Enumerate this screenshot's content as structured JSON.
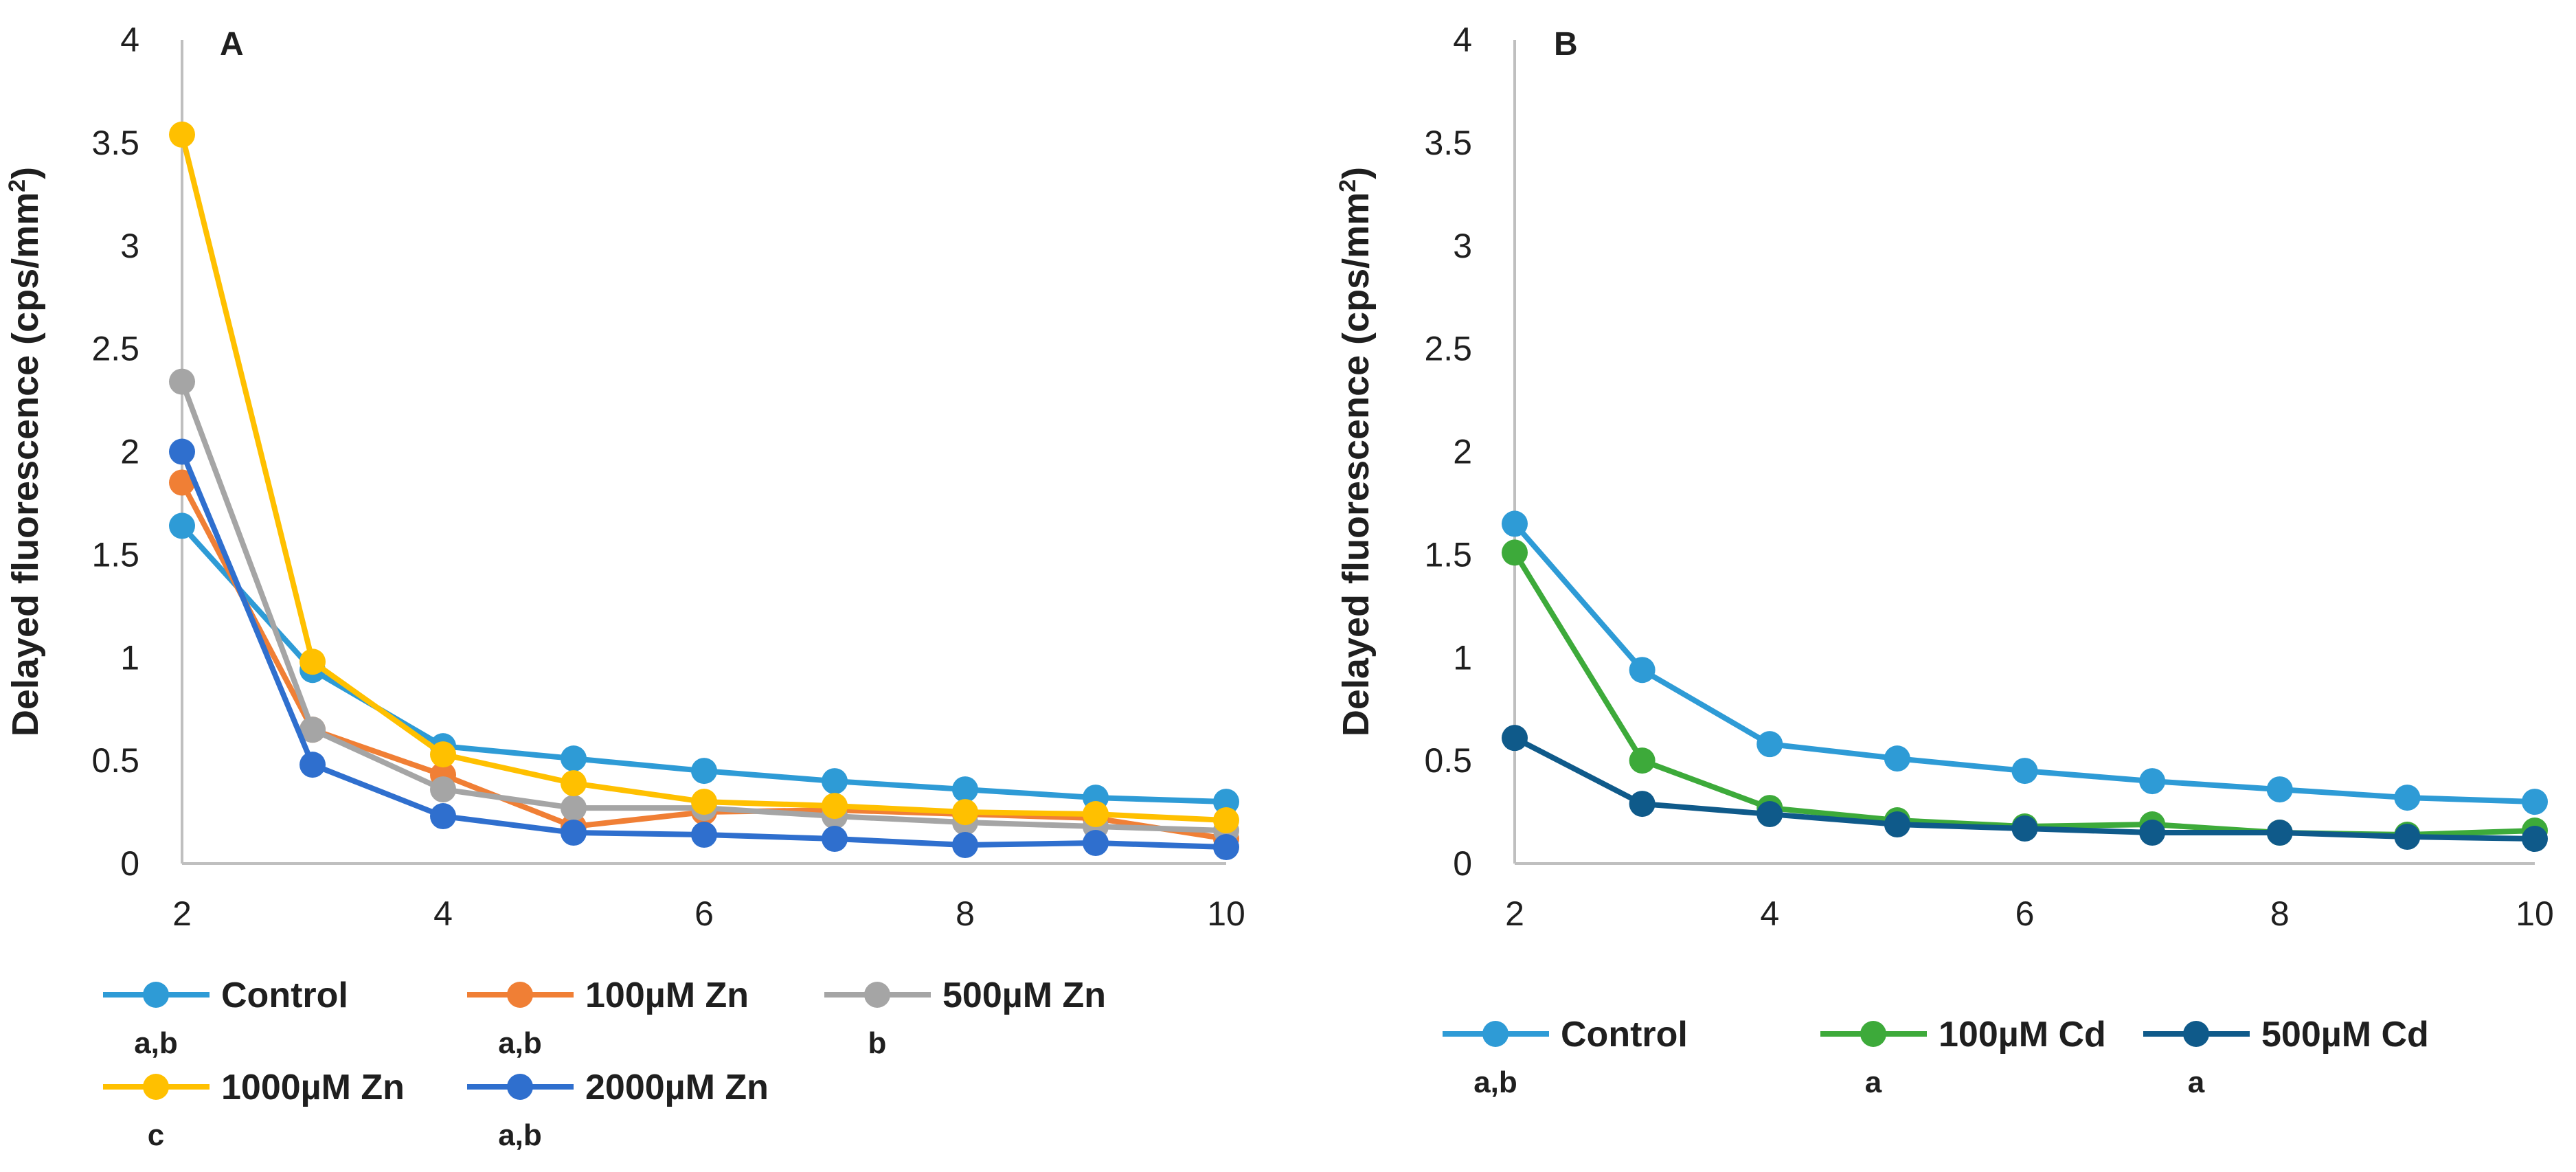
{
  "chart_data": [
    {
      "type": "line",
      "panel_label": "A",
      "ylabel_main": "Delayed fluorescence (cps/mm",
      "ylabel_sup": "2",
      "ylabel_close": ")",
      "xlabel": "",
      "xlim": [
        2,
        10
      ],
      "ylim": [
        0,
        4
      ],
      "x_ticks": [
        "2",
        "4",
        "6",
        "8",
        "10"
      ],
      "y_ticks": [
        "0",
        "0.5",
        "1",
        "1.5",
        "2",
        "2.5",
        "3",
        "3.5",
        "4"
      ],
      "grid": false,
      "legend_position": "bottom",
      "x": [
        2,
        3,
        4,
        5,
        6,
        7,
        8,
        9,
        10
      ],
      "series": [
        {
          "name": "Control",
          "significance": "a,b",
          "color": "#2E9BD6",
          "values": [
            1.64,
            0.94,
            0.57,
            0.51,
            0.45,
            0.4,
            0.36,
            0.32,
            0.3
          ]
        },
        {
          "name": "100µM  Zn",
          "significance": "a,b",
          "color": "#F07F35",
          "values": [
            1.85,
            0.65,
            0.43,
            0.18,
            0.25,
            0.26,
            0.24,
            0.22,
            0.12
          ]
        },
        {
          "name": "500µM Zn",
          "significance": "b",
          "color": "#A5A5A5",
          "values": [
            2.34,
            0.65,
            0.36,
            0.27,
            0.27,
            0.23,
            0.2,
            0.18,
            0.16
          ]
        },
        {
          "name": "1000µM Zn",
          "significance": "c",
          "color": "#FFC000",
          "values": [
            3.54,
            0.98,
            0.53,
            0.39,
            0.3,
            0.28,
            0.25,
            0.24,
            0.21
          ]
        },
        {
          "name": "2000µM Zn",
          "significance": "a,b",
          "color": "#2F6FCE",
          "values": [
            2.0,
            0.48,
            0.23,
            0.15,
            0.14,
            0.12,
            0.09,
            0.1,
            0.08
          ]
        }
      ]
    },
    {
      "type": "line",
      "panel_label": "B",
      "ylabel_main": "Delayed fluorescence (cps/mm",
      "ylabel_sup": "2",
      "ylabel_close": ")",
      "xlabel": "",
      "xlim": [
        2,
        10
      ],
      "ylim": [
        0,
        4
      ],
      "x_ticks": [
        "2",
        "4",
        "6",
        "8",
        "10"
      ],
      "y_ticks": [
        "0",
        "0.5",
        "1",
        "1.5",
        "2",
        "2.5",
        "3",
        "3.5",
        "4"
      ],
      "grid": false,
      "legend_position": "bottom",
      "x": [
        2,
        3,
        4,
        5,
        6,
        7,
        8,
        9,
        10
      ],
      "series": [
        {
          "name": "Control",
          "significance": "a,b",
          "color": "#2E9BD6",
          "values": [
            1.65,
            0.94,
            0.58,
            0.51,
            0.45,
            0.4,
            0.36,
            0.32,
            0.3
          ]
        },
        {
          "name": "100µM Cd",
          "significance": "a",
          "color": "#3DAA3A",
          "values": [
            1.51,
            0.5,
            0.27,
            0.21,
            0.18,
            0.19,
            0.15,
            0.14,
            0.16
          ]
        },
        {
          "name": "500µM Cd",
          "significance": "a",
          "color": "#0F5A8A",
          "values": [
            0.61,
            0.29,
            0.24,
            0.19,
            0.17,
            0.15,
            0.15,
            0.13,
            0.12
          ]
        }
      ]
    }
  ]
}
